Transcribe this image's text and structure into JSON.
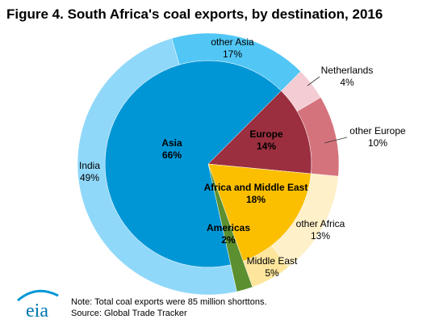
{
  "chart_data": {
    "type": "sunburst",
    "title": "Figure 4. South Africa's coal exports, by destination, 2016",
    "slices": [
      {
        "label": "Europe",
        "value": 14,
        "value_label": "14%",
        "color": "#9b2f3f",
        "children": [
          {
            "label": "Netherlands",
            "value": 4,
            "value_label": "4%",
            "color": "#f3cdd3"
          },
          {
            "label": "other Europe",
            "value": 10,
            "value_label": "10%",
            "color": "#d5737d"
          }
        ]
      },
      {
        "label": "Africa and Middle East",
        "value": 18,
        "value_label": "18%",
        "color": "#fbbf00",
        "children": [
          {
            "label": "other Africa",
            "value": 13,
            "value_label": "13%",
            "color": "#fef0c8"
          },
          {
            "label": "Middle East",
            "value": 5,
            "value_label": "5%",
            "color": "#fde59c"
          }
        ]
      },
      {
        "label": "Americas",
        "value": 2,
        "value_label": "2%",
        "color": "#5b8f2f",
        "children": []
      },
      {
        "label": "Asia",
        "value": 66,
        "value_label": "66%",
        "color": "#0096d6",
        "children": [
          {
            "label": "India",
            "value": 49,
            "value_label": "49%",
            "color": "#90d8fa"
          },
          {
            "label": "other Asia",
            "value": 17,
            "value_label": "17%",
            "color": "#52c6f5"
          }
        ]
      }
    ],
    "note": "Note: Total coal exports were 85 million shorttons.",
    "source": "Source: Global Trade Tracker",
    "logo": "eia"
  }
}
